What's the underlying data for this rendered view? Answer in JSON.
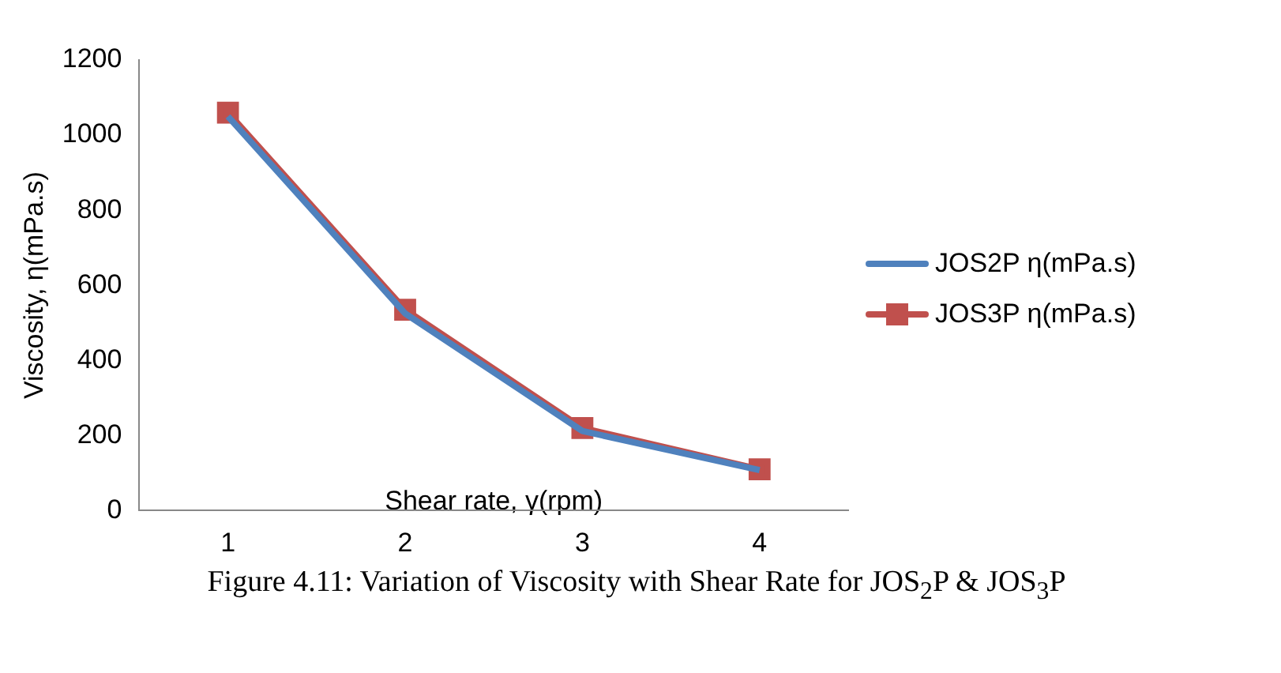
{
  "chart_data": {
    "type": "line",
    "xlabel": "Shear rate, γ(rpm)",
    "ylabel": "Viscosity, η(mPa.s)",
    "categories": [
      "1",
      "2",
      "3",
      "4"
    ],
    "series": [
      {
        "name": "JOS2P η(mPa.s)",
        "color": "#4f81bd",
        "values": [
          1050,
          525,
          212,
          108
        ],
        "marker": "none"
      },
      {
        "name": "JOS3P η(mPa.s)",
        "color": "#c0504d",
        "values": [
          1060,
          535,
          220,
          110
        ],
        "marker": "square"
      }
    ],
    "ylim": [
      0,
      1200
    ],
    "yticks": [
      0,
      200,
      400,
      600,
      800,
      1000,
      1200
    ],
    "grid": false,
    "legend": "right",
    "line_style": "solid",
    "annotations": [
      "Figure 4.11: Variation of Viscosity with Shear Rate for JOS$_{2}$P & JOS$_{3}$P"
    ]
  }
}
